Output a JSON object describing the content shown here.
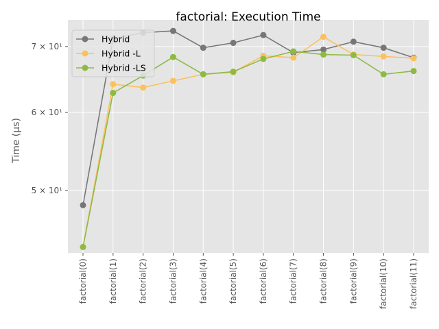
{
  "chart_data": {
    "type": "line",
    "title": "factorial: Execution Time",
    "xlabel": "",
    "ylabel": "Time (µs)",
    "yscale": "log",
    "ylim": [
      43.2,
      74.5
    ],
    "y_ticks": [
      {
        "value": 50,
        "label": "5 × 10¹"
      },
      {
        "value": 60,
        "label": "6 × 10¹"
      },
      {
        "value": 70,
        "label": "7 × 10¹"
      }
    ],
    "grid": true,
    "legend_position": "top-left",
    "categories": [
      "factorial(0)",
      "factorial(1)",
      "factorial(2)",
      "factorial(3)",
      "factorial(4)",
      "factorial(5)",
      "factorial(6)",
      "factorial(7)",
      "factorial(8)",
      "factorial(9)",
      "factorial(10)",
      "factorial(11)"
    ],
    "series": [
      {
        "name": "Hybrid",
        "color": "#777777",
        "values": [
          48.3,
          71.3,
          72.3,
          72.6,
          69.8,
          70.6,
          71.9,
          69.0,
          69.5,
          70.8,
          69.8,
          68.2
        ]
      },
      {
        "name": "Hybrid -L",
        "color": "#fbc15e",
        "values": [
          43.8,
          64.1,
          63.6,
          64.6,
          65.6,
          65.9,
          68.5,
          68.2,
          71.6,
          68.7,
          68.4,
          68.1
        ]
      },
      {
        "name": "Hybrid -LS",
        "color": "#8eba42",
        "values": [
          43.8,
          62.8,
          65.4,
          68.3,
          65.6,
          66.0,
          68.0,
          69.2,
          68.7,
          68.6,
          65.6,
          66.1
        ]
      }
    ]
  }
}
